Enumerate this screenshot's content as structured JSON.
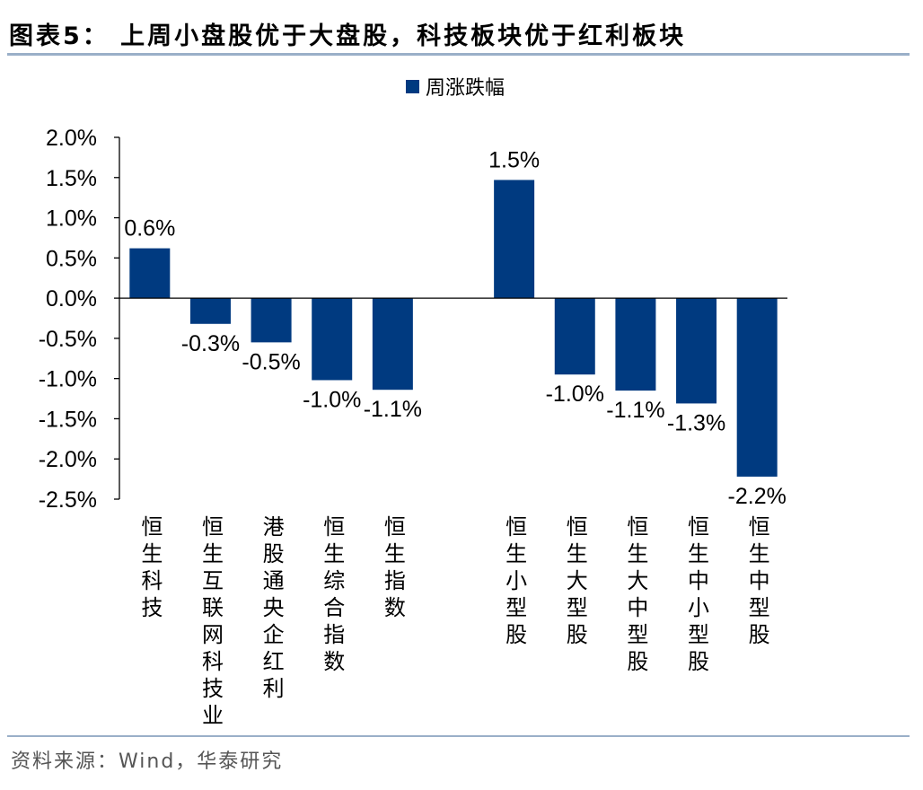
{
  "header": {
    "title": "图表5：  上周小盘股优于大盘股，科技板块优于红利板块"
  },
  "footer": {
    "source": "资料来源：Wind，华泰研究"
  },
  "colors": {
    "bar": "#003A80",
    "rule": "#9AAFC8"
  },
  "chart_data": {
    "type": "bar",
    "title": "",
    "xlabel": "",
    "ylabel": "",
    "legend": {
      "position": "top",
      "entries": [
        "周涨跌幅"
      ]
    },
    "grid": false,
    "ylim": [
      -2.5,
      2.0
    ],
    "yticks": [
      "2.0%",
      "1.5%",
      "1.0%",
      "0.5%",
      "0.0%",
      "-0.5%",
      "-1.0%",
      "-1.5%",
      "-2.0%",
      "-2.5%"
    ],
    "ytick_values": [
      2.0,
      1.5,
      1.0,
      0.5,
      0.0,
      -0.5,
      -1.0,
      -1.5,
      -2.0,
      -2.5
    ],
    "categories": [
      "恒生科技",
      "恒生互联网科技业",
      "港股通央企红利",
      "恒生综合指数",
      "恒生指数",
      "",
      "恒生小型股",
      "恒生大型股",
      "恒生大中型股",
      "恒生中小型股",
      "恒生中型股"
    ],
    "series": [
      {
        "name": "周涨跌幅",
        "values": [
          0.62,
          -0.32,
          -0.55,
          -1.02,
          -1.14,
          null,
          1.47,
          -0.95,
          -1.15,
          -1.31,
          -2.22
        ],
        "labels": [
          "0.6%",
          "-0.3%",
          "-0.5%",
          "-1.0%",
          "-1.1%",
          "",
          "1.5%",
          "-1.0%",
          "-1.1%",
          "-1.3%",
          "-2.2%"
        ]
      }
    ]
  }
}
